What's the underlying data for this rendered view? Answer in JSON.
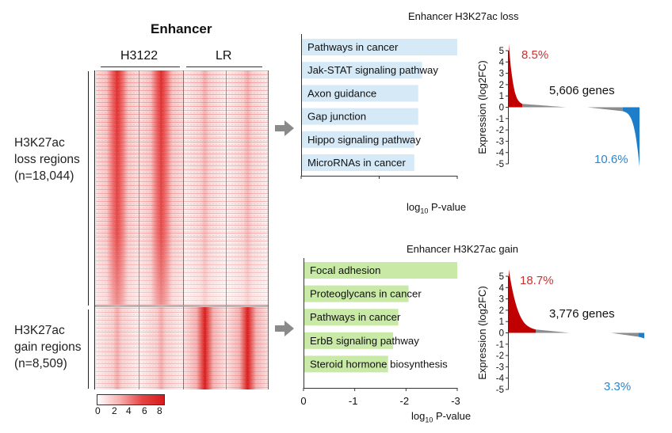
{
  "heatmap": {
    "title": "Enhancer",
    "conditions": [
      "H3122",
      "LR"
    ],
    "loss_label": [
      "H3K27ac",
      "loss regions",
      "(n=18,044)"
    ],
    "gain_label": [
      "H3K27ac",
      "gain regions",
      "(n=8,509)"
    ],
    "scale_ticks": [
      "0",
      "2",
      "4",
      "6",
      "8"
    ],
    "colors": {
      "low": "#ffffff",
      "high": "#d7191c"
    }
  },
  "chart_data": [
    {
      "type": "bar",
      "title": "Enhancer H3K27ac loss",
      "categories": [
        "Pathways in cancer",
        "Jak-STAT signaling pathway",
        "Axon guidance",
        "Gap junction",
        "Hippo signaling pathway",
        "MicroRNAs in cancer"
      ],
      "values": [
        -2.0,
        -1.55,
        -1.5,
        -1.5,
        -1.45,
        -1.45
      ],
      "xlabel": "log10 P-value",
      "xticks": [
        "0",
        "-1",
        "-2"
      ],
      "xlim": [
        0,
        -2
      ],
      "color": "#d5e9f7"
    },
    {
      "type": "bar",
      "title": "Enhancer H3K27ac gain",
      "categories": [
        "Focal adhesion",
        "Proteoglycans in cancer",
        "Pathways in cancer",
        "ErbB signaling pathway",
        "Steroid hormone biosynthesis"
      ],
      "values": [
        -3.0,
        -2.05,
        -1.85,
        -1.75,
        -1.65
      ],
      "xlabel": "log10 P-value",
      "xticks": [
        "0",
        "-1",
        "-2",
        "-3"
      ],
      "xlim": [
        0,
        -3
      ],
      "color": "#c8eaa6"
    },
    {
      "type": "area",
      "ylabel": "Expression (log2FC)",
      "yticks": [
        "5",
        "4",
        "3",
        "2",
        "1",
        "0",
        "-1",
        "-2",
        "-3",
        "-4",
        "-5"
      ],
      "ylim": [
        -5,
        5
      ],
      "genes_label": "5,606 genes",
      "up_pct": "8.5%",
      "down_pct": "10.6%",
      "up_color": "#c00000",
      "down_color": "#1f7ec9",
      "mid_color": "#8c8c8c"
    },
    {
      "type": "area",
      "ylabel": "Expression (log2FC)",
      "yticks": [
        "5",
        "4",
        "3",
        "2",
        "1",
        "0",
        "-1",
        "-2",
        "-3",
        "-4",
        "-5"
      ],
      "ylim": [
        -5,
        5
      ],
      "genes_label": "3,776 genes",
      "up_pct": "18.7%",
      "down_pct": "3.3%",
      "up_color": "#c00000",
      "down_color": "#1f7ec9",
      "mid_color": "#8c8c8c"
    }
  ]
}
